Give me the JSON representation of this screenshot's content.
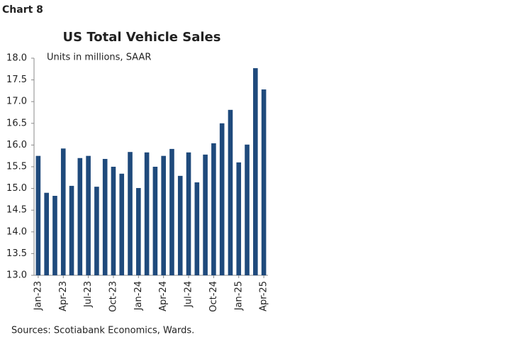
{
  "header": "Chart 8",
  "chart_data": {
    "type": "bar",
    "title": "US Total Vehicle Sales",
    "subtitle": "Units in millions, SAAR",
    "categories": [
      "Jan-23",
      null,
      null,
      "Apr-23",
      null,
      null,
      "Jul-23",
      null,
      null,
      "Oct-23",
      null,
      null,
      "Jan-24",
      null,
      null,
      "Apr-24",
      null,
      null,
      "Jul-24",
      null,
      null,
      "Oct-24",
      null,
      null,
      "Jan-25",
      null,
      null,
      "Apr-25"
    ],
    "values": [
      15.75,
      14.9,
      14.83,
      15.92,
      15.06,
      15.7,
      15.75,
      15.04,
      15.68,
      15.5,
      15.34,
      15.84,
      15.01,
      15.83,
      15.5,
      15.75,
      15.91,
      15.29,
      15.83,
      15.14,
      15.78,
      16.04,
      16.5,
      16.81,
      15.6,
      16.01,
      17.77,
      17.28
    ],
    "color": "#1f4a7c",
    "ylim": [
      13,
      18
    ],
    "yticks": [
      {
        "value": 13,
        "label": "13.0"
      },
      {
        "value": 13.5,
        "label": "13.5"
      },
      {
        "value": 14,
        "label": "14.0"
      },
      {
        "value": 14.5,
        "label": "14.5"
      },
      {
        "value": 15,
        "label": "15.0"
      },
      {
        "value": 15.5,
        "label": "15.5"
      },
      {
        "value": 16,
        "label": "16.0"
      },
      {
        "value": 16.5,
        "label": "16.5"
      },
      {
        "value": 17,
        "label": "17.0"
      },
      {
        "value": 17.5,
        "label": "17.5"
      },
      {
        "value": 18,
        "label": "18.0"
      }
    ],
    "source": "Sources: Scotiabank Economics, Wards."
  }
}
